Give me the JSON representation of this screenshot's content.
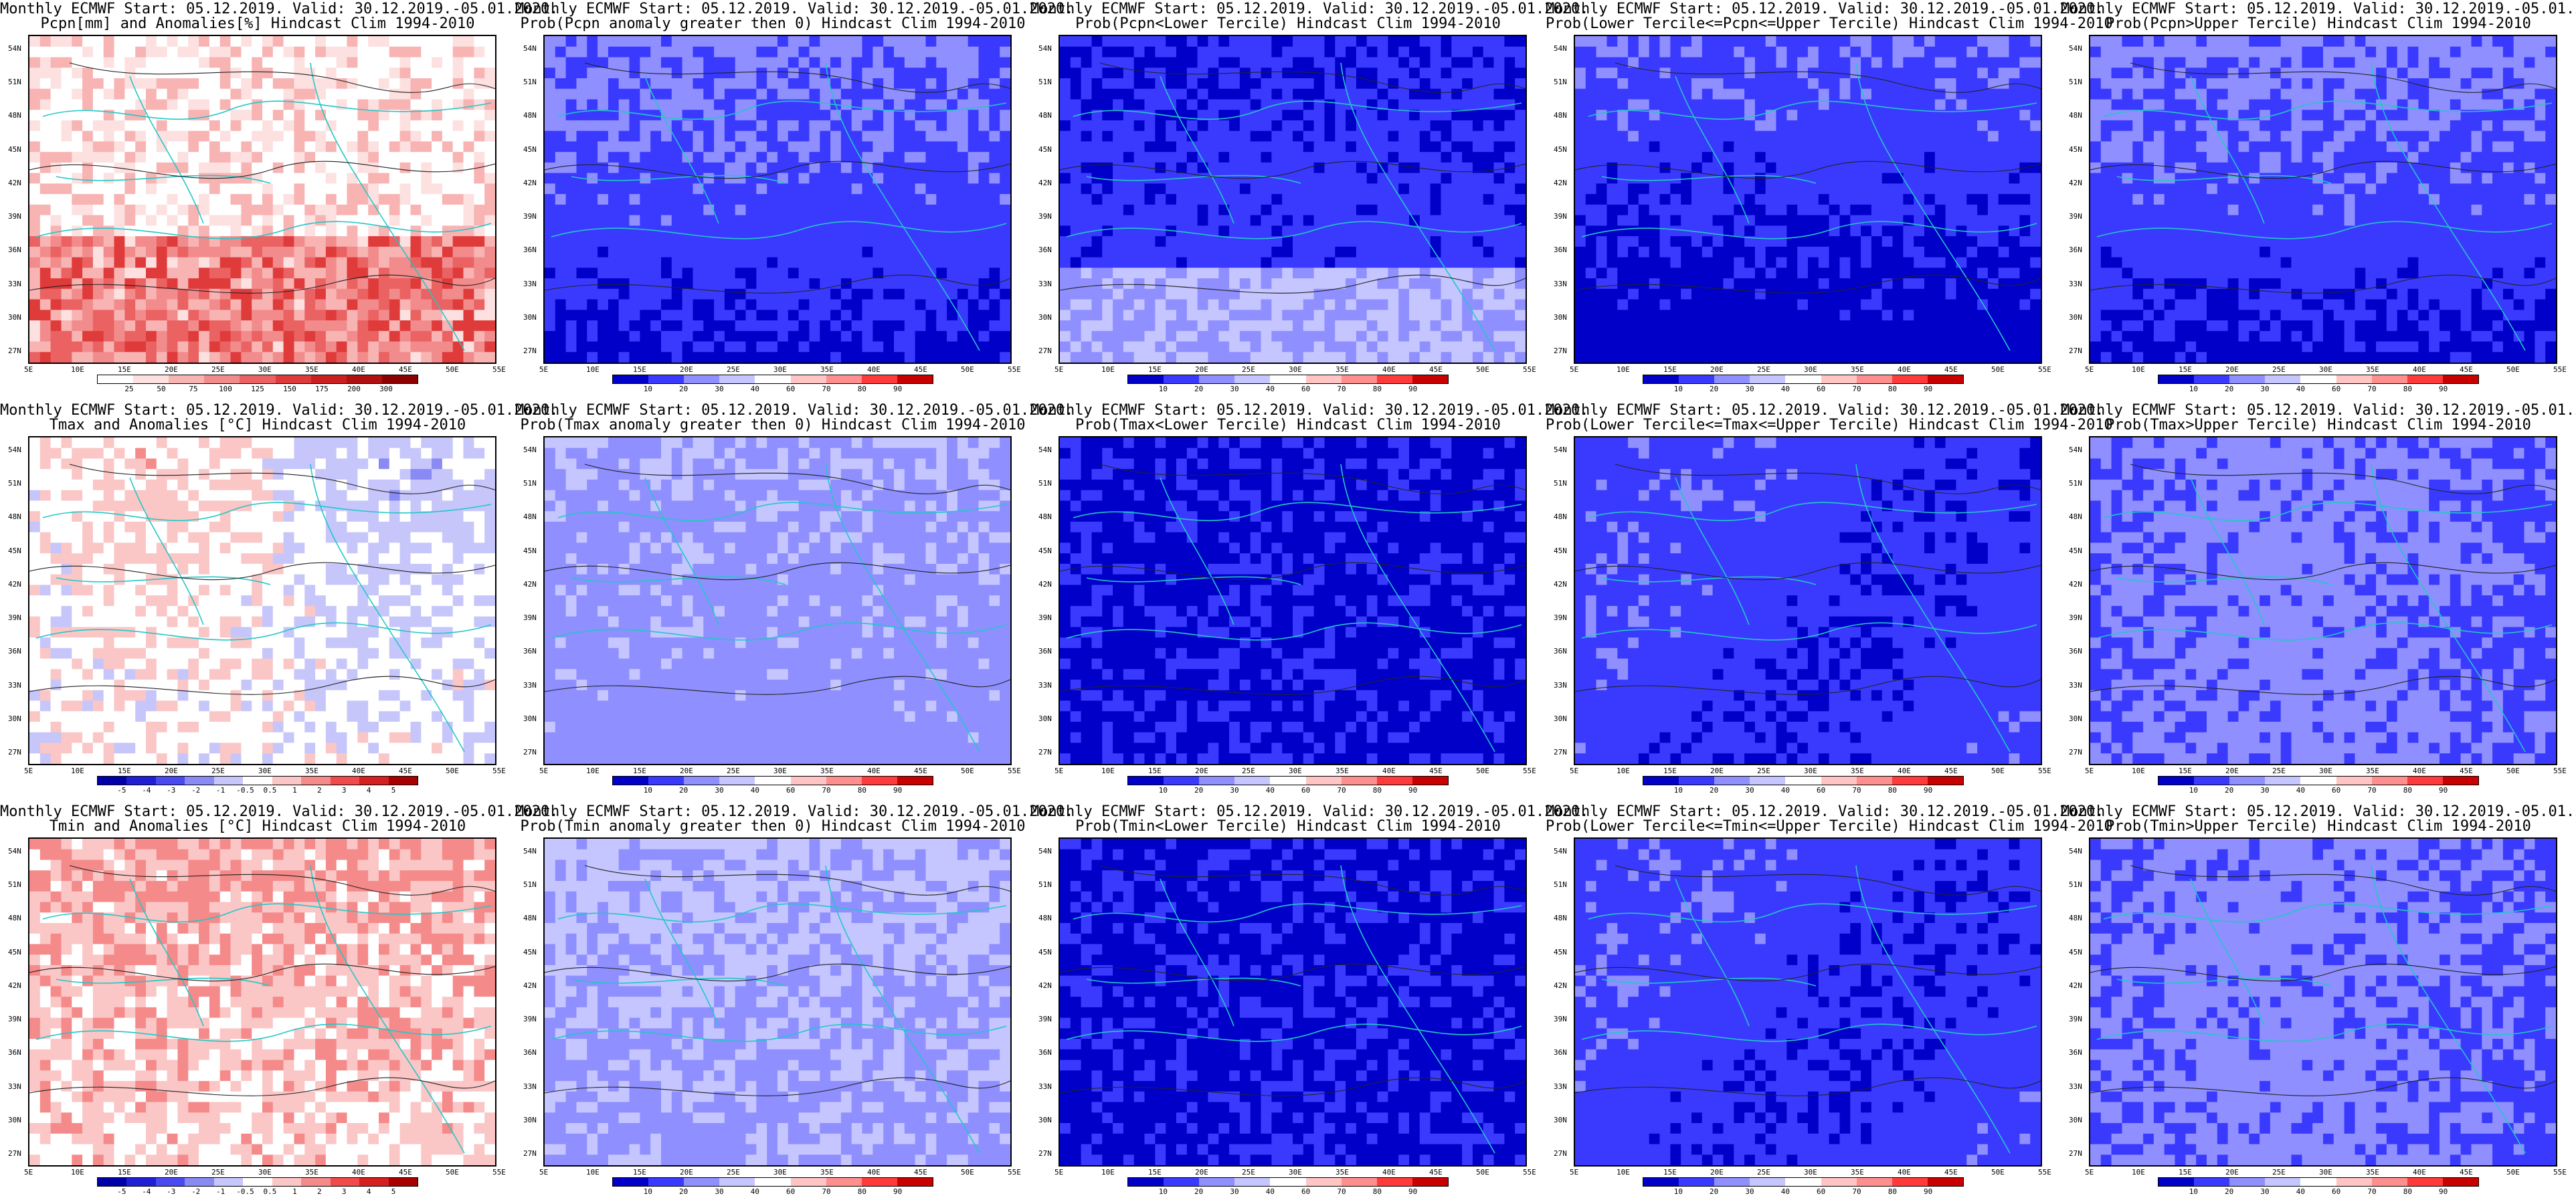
{
  "header_prefix": "Monthly ECMWF Start: 05.12.2019. Valid: 30.12.2019.-05.01.2020.",
  "lat_ticks": [
    "54N",
    "51N",
    "48N",
    "45N",
    "42N",
    "39N",
    "36N",
    "33N",
    "30N",
    "27N"
  ],
  "lon_ticks": [
    "5E",
    "10E",
    "15E",
    "20E",
    "25E",
    "30E",
    "35E",
    "40E",
    "45E",
    "50E",
    "55E"
  ],
  "palettes": {
    "pcpn_anom": [
      "#ffffff",
      "#fde0e0",
      "#f8b3b3",
      "#f28c8c",
      "#ea6262",
      "#e03b3b",
      "#cc1f1f",
      "#b01010",
      "#8c0000"
    ],
    "diverging": [
      "#0000a8",
      "#1f1fd6",
      "#4a4af0",
      "#8a8af5",
      "#c6c6fb",
      "#ffffff",
      "#fbc6c6",
      "#f58a8a",
      "#f04a4a",
      "#d61f1f",
      "#a80000"
    ],
    "prob": [
      "#0000c8",
      "#3a3aff",
      "#8f8fff",
      "#c5c5ff",
      "#ffffff",
      "#ffc5c5",
      "#ff8f8f",
      "#ff3a3a",
      "#c80000"
    ]
  },
  "panels": [
    {
      "title_line2": "Pcpn[mm] and Anomalies[%] Hindcast Clim 1994-2010",
      "palette": "pcpn_anom",
      "colorbar_labels": [
        "25",
        "50",
        "75",
        "100",
        "125",
        "150",
        "175",
        "200",
        "300"
      ],
      "dominant": "mixed-blue-low"
    },
    {
      "title_line2": "Prob(Pcpn anomaly greater then 0) Hindcast Clim 1994-2010",
      "palette": "prob",
      "colorbar_labels": [
        "10",
        "20",
        "30",
        "40",
        "60",
        "70",
        "80",
        "90"
      ],
      "dominant": "blue-south"
    },
    {
      "title_line2": "Prob(Pcpn<Lower Tercile) Hindcast Clim 1994-2010",
      "palette": "prob",
      "colorbar_labels": [
        "10",
        "20",
        "30",
        "40",
        "60",
        "70",
        "80",
        "90"
      ],
      "dominant": "red-south"
    },
    {
      "title_line2": "Prob(Lower Tercile<=Pcpn<=Upper Tercile) Hindcast Clim 1994-2010",
      "palette": "prob",
      "colorbar_labels": [
        "10",
        "20",
        "30",
        "40",
        "60",
        "70",
        "80",
        "90"
      ],
      "dominant": "blue-south-deep"
    },
    {
      "title_line2": "Prob(Pcpn>Upper Tercile) Hindcast Clim 1994-2010",
      "palette": "prob",
      "colorbar_labels": [
        "10",
        "20",
        "30",
        "40",
        "60",
        "70",
        "80",
        "90"
      ],
      "dominant": "blue-south"
    },
    {
      "title_line2": "Tmax and Anomalies [°C] Hindcast Clim 1994-2010",
      "palette": "diverging",
      "colorbar_labels": [
        "-5",
        "-4",
        "-3",
        "-2",
        "-1",
        "-0.5",
        "0.5",
        "1",
        "2",
        "3",
        "4",
        "5"
      ],
      "dominant": "red-light"
    },
    {
      "title_line2": "Prob(Tmax anomaly greater then 0) Hindcast Clim 1994-2010",
      "palette": "prob",
      "colorbar_labels": [
        "10",
        "20",
        "30",
        "40",
        "60",
        "70",
        "80",
        "90"
      ],
      "dominant": "red-medium"
    },
    {
      "title_line2": "Prob(Tmax<Lower Tercile) Hindcast Clim 1994-2010",
      "palette": "prob",
      "colorbar_labels": [
        "10",
        "20",
        "30",
        "40",
        "60",
        "70",
        "80",
        "90"
      ],
      "dominant": "blue-deep"
    },
    {
      "title_line2": "Prob(Lower Tercile<=Tmax<=Upper Tercile) Hindcast Clim 1994-2010",
      "palette": "prob",
      "colorbar_labels": [
        "10",
        "20",
        "30",
        "40",
        "60",
        "70",
        "80",
        "90"
      ],
      "dominant": "blue-mixed"
    },
    {
      "title_line2": "Prob(Tmax>Upper Tercile) Hindcast Clim 1994-2010",
      "palette": "prob",
      "colorbar_labels": [
        "10",
        "20",
        "30",
        "40",
        "60",
        "70",
        "80",
        "90"
      ],
      "dominant": "pink-light"
    },
    {
      "title_line2": "Tmin and Anomalies [°C] Hindcast Clim 1994-2010",
      "palette": "diverging",
      "colorbar_labels": [
        "-5",
        "-4",
        "-3",
        "-2",
        "-1",
        "-0.5",
        "0.5",
        "1",
        "2",
        "3",
        "4",
        "5"
      ],
      "dominant": "red-medium"
    },
    {
      "title_line2": "Prob(Tmin anomaly greater then 0) Hindcast Clim 1994-2010",
      "palette": "prob",
      "colorbar_labels": [
        "10",
        "20",
        "30",
        "40",
        "60",
        "70",
        "80",
        "90"
      ],
      "dominant": "red-strong"
    },
    {
      "title_line2": "Prob(Tmin<Lower Tercile) Hindcast Clim 1994-2010",
      "palette": "prob",
      "colorbar_labels": [
        "10",
        "20",
        "30",
        "40",
        "60",
        "70",
        "80",
        "90"
      ],
      "dominant": "blue-deep"
    },
    {
      "title_line2": "Prob(Lower Tercile<=Tmin<=Upper Tercile) Hindcast Clim 1994-2010",
      "palette": "prob",
      "colorbar_labels": [
        "10",
        "20",
        "30",
        "40",
        "60",
        "70",
        "80",
        "90"
      ],
      "dominant": "blue-mixed"
    },
    {
      "title_line2": "Prob(Tmin>Upper Tercile) Hindcast Clim 1994-2010",
      "palette": "prob",
      "colorbar_labels": [
        "10",
        "20",
        "30",
        "40",
        "60",
        "70",
        "80",
        "90"
      ],
      "dominant": "pink-light"
    }
  ]
}
